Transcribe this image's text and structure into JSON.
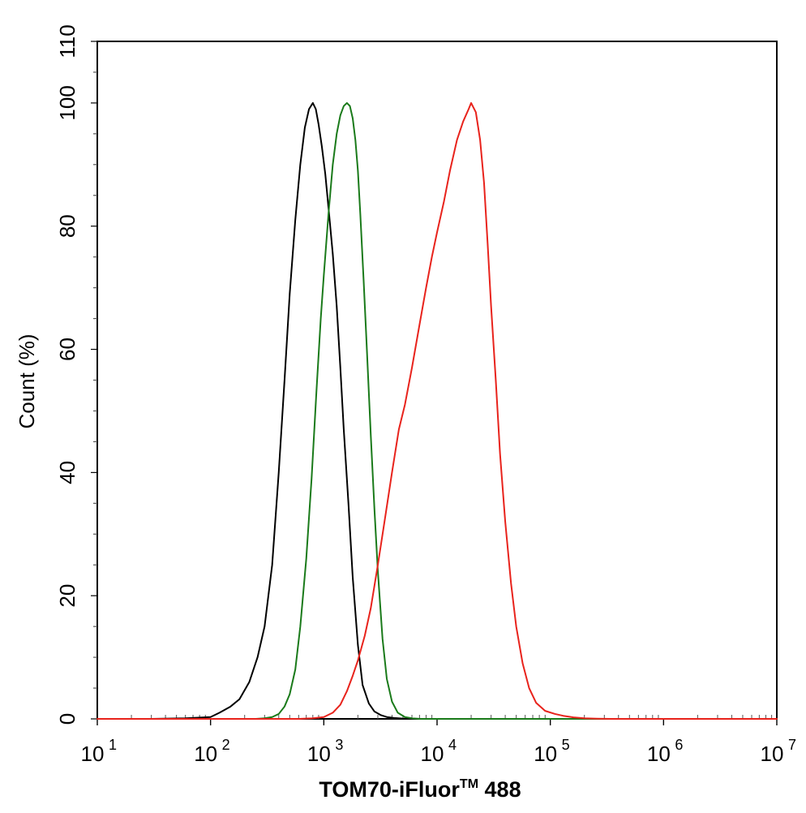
{
  "chart_data": {
    "type": "line",
    "title": "",
    "xlabel_main": "TOM70-iFluor",
    "xlabel_tm": "TM",
    "xlabel_tail": " 488",
    "ylabel": "Count  (%)",
    "xscale": "log",
    "xlim": [
      10,
      10000000
    ],
    "ylim": [
      0,
      110
    ],
    "x_ticks": [
      {
        "base": "10",
        "exp": "1",
        "value": 10
      },
      {
        "base": "10",
        "exp": "2",
        "value": 100
      },
      {
        "base": "10",
        "exp": "3",
        "value": 1000
      },
      {
        "base": "10",
        "exp": "4",
        "value": 10000
      },
      {
        "base": "10",
        "exp": "5",
        "value": 100000
      },
      {
        "base": "10",
        "exp": "6",
        "value": 1000000
      },
      {
        "base": "10",
        "exp": "7",
        "value": 10000000
      }
    ],
    "y_ticks": [
      0,
      20,
      40,
      60,
      80,
      100,
      110
    ],
    "grid": false,
    "legend": "none",
    "series": [
      {
        "color": "#000000",
        "x": [
          10,
          30,
          60,
          100,
          120,
          150,
          180,
          220,
          260,
          300,
          350,
          400,
          450,
          500,
          560,
          620,
          680,
          740,
          800,
          850,
          900,
          960,
          1030,
          1100,
          1200,
          1300,
          1400,
          1500,
          1650,
          1800,
          2000,
          2200,
          2500,
          2800,
          3200,
          3600,
          4200,
          5000,
          6000,
          8000,
          10000000
        ],
        "y": [
          0,
          0,
          0.1,
          0.3,
          1.0,
          2.0,
          3.2,
          6.0,
          10.0,
          15.0,
          25.0,
          40.0,
          55.0,
          69.0,
          81.0,
          90.0,
          96.0,
          99.0,
          100.0,
          99.0,
          96.5,
          93.0,
          88.5,
          83.0,
          75.5,
          67.0,
          57.0,
          47.0,
          35.0,
          23.0,
          12.0,
          5.5,
          2.5,
          1.2,
          0.6,
          0.3,
          0.15,
          0.05,
          0.02,
          0,
          0
        ]
      },
      {
        "color": "#1a7a1a",
        "x": [
          10,
          250,
          300,
          350,
          400,
          450,
          500,
          560,
          620,
          700,
          780,
          860,
          940,
          1000,
          1100,
          1200,
          1300,
          1400,
          1500,
          1600,
          1700,
          1800,
          1900,
          2000,
          2100,
          2250,
          2400,
          2600,
          2800,
          3000,
          3300,
          3600,
          4000,
          4500,
          5200,
          6000,
          7000,
          10000000
        ],
        "y": [
          0,
          0,
          0.1,
          0.3,
          0.8,
          2.0,
          4.0,
          8.0,
          15.0,
          26.0,
          39.0,
          53.0,
          65.0,
          72.0,
          82.0,
          90.0,
          95.0,
          98.0,
          99.5,
          100.0,
          99.5,
          97.5,
          94.0,
          89.0,
          82.0,
          71.0,
          60.0,
          46.0,
          34.0,
          24.0,
          13.0,
          6.5,
          2.8,
          1.0,
          0.3,
          0.1,
          0,
          0
        ]
      },
      {
        "color": "#e8231c",
        "x": [
          10,
          600,
          800,
          1000,
          1200,
          1400,
          1600,
          1800,
          2000,
          2300,
          2600,
          3000,
          3500,
          4000,
          4600,
          5200,
          6000,
          7000,
          8000,
          9000,
          10000,
          11500,
          13000,
          15000,
          17000,
          19000,
          20000,
          22000,
          24000,
          26000,
          28000,
          30000,
          33000,
          36000,
          40000,
          45000,
          50000,
          57000,
          65000,
          75000,
          90000,
          110000,
          130000,
          160000,
          200000,
          260000,
          350000,
          10000000
        ],
        "y": [
          0,
          0,
          0.1,
          0.3,
          1.0,
          2.3,
          4.5,
          7.0,
          9.5,
          13.5,
          18.0,
          25.0,
          33.0,
          40.0,
          47.0,
          51.0,
          57.0,
          64.0,
          70.0,
          75.0,
          79.0,
          84.0,
          89.0,
          94.0,
          97.0,
          99.0,
          100.0,
          98.5,
          94.0,
          87.0,
          77.0,
          67.0,
          55.0,
          43.0,
          32.0,
          22.0,
          15.0,
          9.0,
          5.0,
          2.6,
          1.3,
          0.8,
          0.5,
          0.25,
          0.1,
          0.03,
          0,
          0
        ]
      }
    ]
  }
}
